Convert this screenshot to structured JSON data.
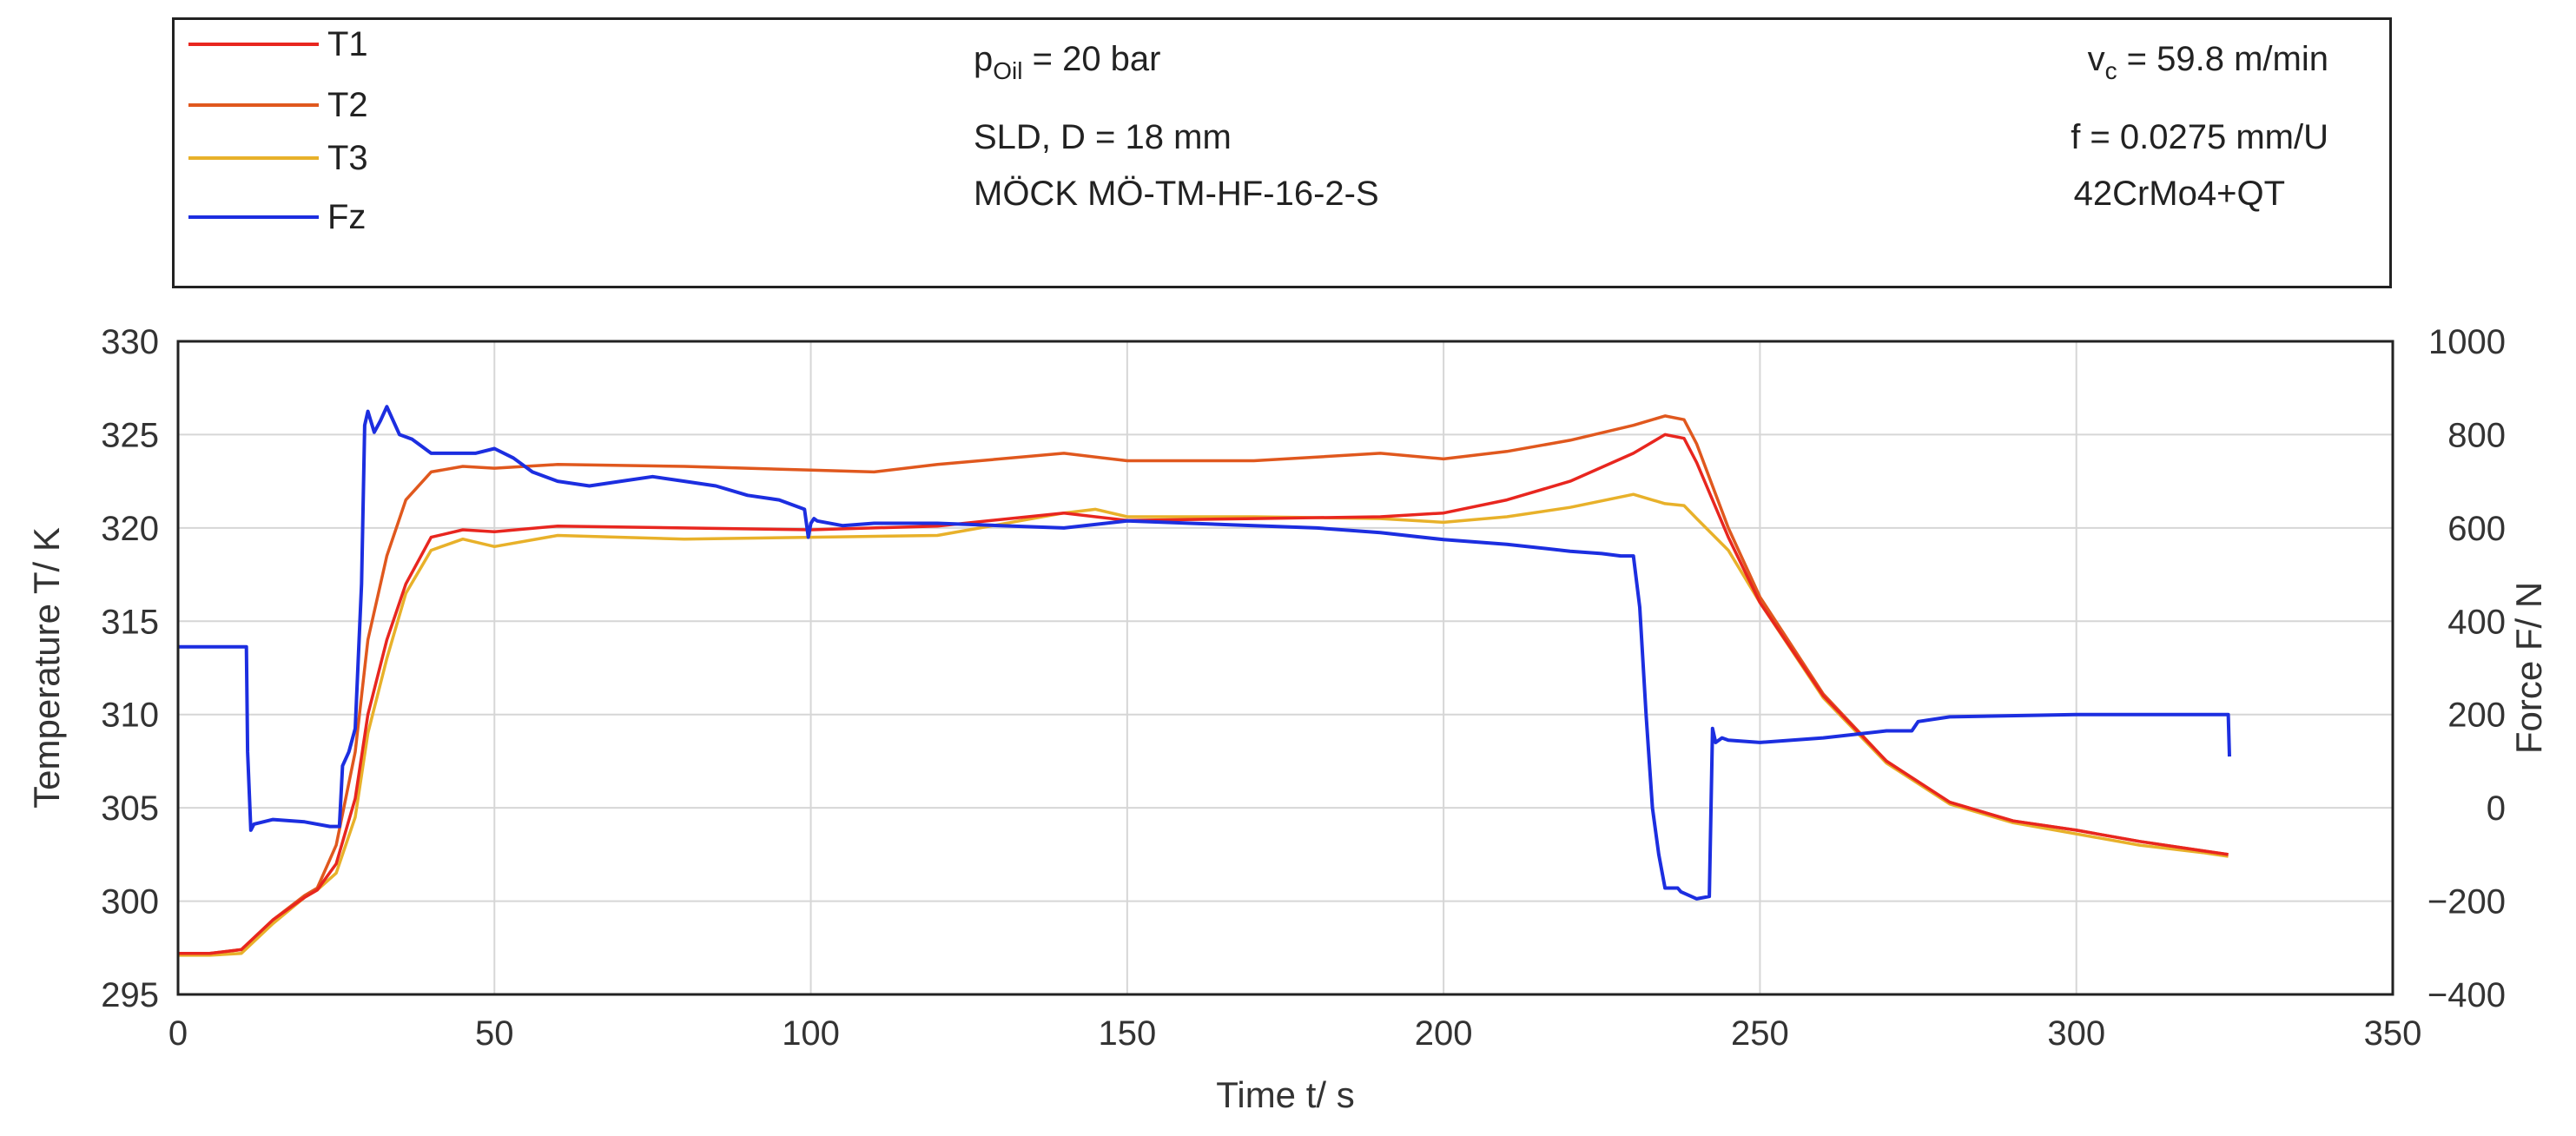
{
  "legend": {
    "entries": [
      {
        "label": "T1",
        "color": "#e8261f"
      },
      {
        "label": "T2",
        "color": "#e0581e"
      },
      {
        "label": "T3",
        "color": "#e8b12a"
      },
      {
        "label": "Fz",
        "color": "#1c2ee0"
      }
    ],
    "params_center": [
      {
        "base": "p",
        "sub": "Oil",
        "rest": " = 20 bar"
      },
      {
        "text": "SLD, D = 18 mm"
      },
      {
        "text": "MÖCK MÖ-TM-HF-16-2-S"
      }
    ],
    "params_right": [
      {
        "base": "v",
        "sub": "c",
        "rest": " = 59.8 m/min"
      },
      {
        "text": "f = 0.0275 mm/U"
      },
      {
        "text": "42CrMo4+QT"
      }
    ]
  },
  "chart_data": {
    "type": "line",
    "xlabel": "Time t/ s",
    "ylabel": "Temperature T/ K",
    "y2label": "Force F/ N",
    "xlim": [
      0,
      350
    ],
    "ylim": [
      295,
      330
    ],
    "y2lim": [
      -400,
      1000
    ],
    "xticks": [
      0,
      50,
      100,
      150,
      200,
      250,
      300,
      350
    ],
    "yticks": [
      295,
      300,
      305,
      310,
      315,
      320,
      325,
      330
    ],
    "y2ticks": [
      -400,
      -200,
      0,
      200,
      400,
      600,
      800,
      1000
    ],
    "grid": true,
    "series": [
      {
        "name": "T1",
        "axis": "left",
        "color": "#e8261f",
        "x": [
          0,
          5,
          10,
          15,
          20,
          22,
          25,
          28,
          30,
          33,
          36,
          40,
          45,
          50,
          60,
          80,
          100,
          120,
          140,
          150,
          170,
          190,
          200,
          210,
          220,
          230,
          235,
          238,
          240,
          245,
          250,
          260,
          270,
          280,
          290,
          300,
          310,
          320,
          324
        ],
        "y": [
          297.2,
          297.2,
          297.4,
          299,
          300.2,
          300.6,
          302,
          305.5,
          310,
          314,
          317,
          319.5,
          319.9,
          319.8,
          320.1,
          320.0,
          319.9,
          320.1,
          320.8,
          320.4,
          320.5,
          320.6,
          320.8,
          321.5,
          322.5,
          324,
          325,
          324.8,
          323.5,
          319.5,
          316,
          311,
          307.5,
          305.3,
          304.3,
          303.8,
          303.2,
          302.7,
          302.5
        ]
      },
      {
        "name": "T2",
        "axis": "left",
        "color": "#e0581e",
        "x": [
          0,
          5,
          10,
          15,
          20,
          22,
          25,
          28,
          30,
          33,
          36,
          40,
          45,
          50,
          60,
          80,
          100,
          110,
          120,
          140,
          150,
          170,
          190,
          200,
          210,
          220,
          230,
          235,
          238,
          240,
          245,
          250,
          260,
          270,
          280,
          290,
          300,
          310,
          320,
          324
        ],
        "y": [
          297.2,
          297.2,
          297.4,
          299,
          300.3,
          300.7,
          303,
          308,
          314,
          318.5,
          321.5,
          323,
          323.3,
          323.2,
          323.4,
          323.3,
          323.1,
          323.0,
          323.4,
          324.0,
          323.6,
          323.6,
          324.0,
          323.7,
          324.1,
          324.7,
          325.5,
          326.0,
          325.8,
          324.5,
          320,
          316.3,
          311.1,
          307.5,
          305.3,
          304.3,
          303.8,
          303.2,
          302.7,
          302.5
        ]
      },
      {
        "name": "T3",
        "axis": "left",
        "color": "#e8b12a",
        "x": [
          0,
          5,
          10,
          15,
          20,
          22,
          25,
          28,
          30,
          33,
          36,
          40,
          45,
          50,
          60,
          80,
          100,
          120,
          140,
          145,
          150,
          170,
          190,
          200,
          210,
          220,
          230,
          235,
          238,
          240,
          245,
          250,
          260,
          270,
          280,
          290,
          300,
          310,
          320,
          324
        ],
        "y": [
          297.1,
          297.1,
          297.2,
          298.8,
          300.2,
          300.6,
          301.5,
          304.5,
          309,
          313,
          316.5,
          318.8,
          319.4,
          319.0,
          319.6,
          319.4,
          319.5,
          319.6,
          320.8,
          321.0,
          320.6,
          320.6,
          320.5,
          320.3,
          320.6,
          321.1,
          321.8,
          321.3,
          321.2,
          320.5,
          318.8,
          316,
          310.9,
          307.4,
          305.2,
          304.2,
          303.6,
          303.0,
          302.6,
          302.4
        ]
      },
      {
        "name": "Fz",
        "axis": "right",
        "color": "#1c2ee0",
        "x": [
          0,
          10.8,
          11.0,
          11.5,
          12,
          15,
          20,
          24,
          25.5,
          26,
          27,
          28,
          29,
          29.5,
          30,
          31,
          32,
          33,
          34,
          35,
          37,
          40,
          44,
          47,
          50,
          53,
          56,
          60,
          65,
          70,
          75,
          80,
          85,
          90,
          95,
          99,
          99.6,
          100,
          100.5,
          101,
          105,
          110,
          120,
          130,
          140,
          150,
          160,
          170,
          180,
          190,
          200,
          210,
          220,
          225,
          228,
          230,
          231,
          232,
          233,
          234,
          235,
          236,
          237,
          237.5,
          240,
          242,
          242.5,
          243,
          244,
          245,
          250,
          260,
          270,
          274,
          275,
          280,
          300,
          324,
          324.2
        ],
        "y": [
          345,
          345,
          120,
          -48,
          -35,
          -25,
          -30,
          -40,
          -40,
          90,
          120,
          170,
          480,
          820,
          850,
          805,
          830,
          860,
          830,
          800,
          790,
          760,
          760,
          760,
          770,
          750,
          720,
          700,
          690,
          700,
          710,
          700,
          690,
          670,
          660,
          640,
          580,
          610,
          620,
          615,
          605,
          610,
          610,
          605,
          600,
          615,
          610,
          605,
          600,
          590,
          575,
          565,
          550,
          545,
          540,
          540,
          430,
          200,
          0,
          -100,
          -172,
          -172,
          -172,
          -180,
          -195,
          -190,
          170,
          140,
          150,
          145,
          140,
          150,
          165,
          165,
          185,
          195,
          200,
          200,
          110
        ]
      }
    ]
  }
}
